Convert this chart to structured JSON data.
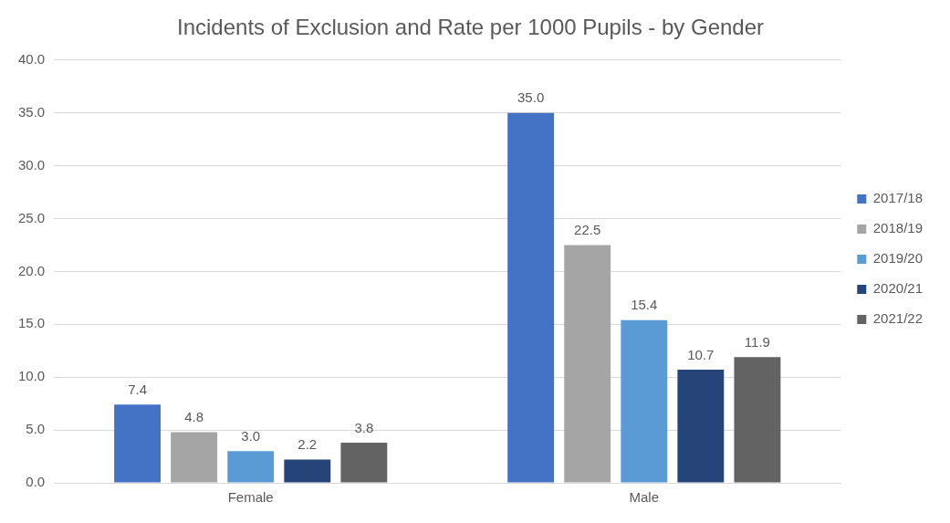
{
  "chart_data": {
    "type": "bar",
    "title": "Incidents of Exclusion and Rate per 1000 Pupils - by Gender",
    "categories": [
      "Female",
      "Male"
    ],
    "series": [
      {
        "name": "2017/18",
        "color": "#4472c4",
        "values": [
          7.4,
          35.0
        ],
        "value_labels": [
          "7.4",
          "35.0"
        ]
      },
      {
        "name": "2018/19",
        "color": "#a5a5a5",
        "values": [
          4.8,
          22.5
        ],
        "value_labels": [
          "4.8",
          "22.5"
        ]
      },
      {
        "name": "2019/20",
        "color": "#5b9bd5",
        "values": [
          3.0,
          15.4
        ],
        "value_labels": [
          "3.0",
          "15.4"
        ]
      },
      {
        "name": "2020/21",
        "color": "#264478",
        "values": [
          2.2,
          10.7
        ],
        "value_labels": [
          "2.2",
          "10.7"
        ]
      },
      {
        "name": "2021/22",
        "color": "#636363",
        "values": [
          3.8,
          11.9
        ],
        "value_labels": [
          "3.8",
          "11.9"
        ]
      }
    ],
    "ylim": [
      0,
      40
    ],
    "yticks": [
      {
        "value": 0,
        "label": "0.0"
      },
      {
        "value": 5,
        "label": "5.0"
      },
      {
        "value": 10,
        "label": "10.0"
      },
      {
        "value": 15,
        "label": "15.0"
      },
      {
        "value": 20,
        "label": "20.0"
      },
      {
        "value": 25,
        "label": "25.0"
      },
      {
        "value": 30,
        "label": "30.0"
      },
      {
        "value": 35,
        "label": "35.0"
      },
      {
        "value": 40,
        "label": "40.0"
      }
    ],
    "grid": "y",
    "legend": "right"
  }
}
